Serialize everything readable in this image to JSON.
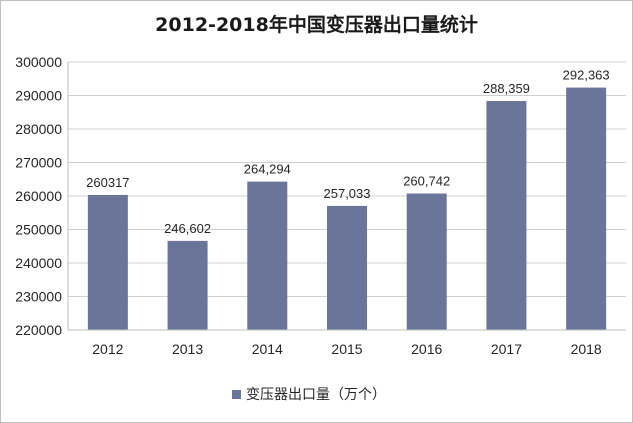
{
  "chart_data": {
    "type": "bar",
    "title": "2012-2018年中国变压器出口量统计",
    "categories": [
      "2012",
      "2013",
      "2014",
      "2015",
      "2016",
      "2017",
      "2018"
    ],
    "series": [
      {
        "name": "变压器出口量（万个）",
        "values": [
          260317,
          246602,
          264294,
          257033,
          260742,
          288359,
          292363
        ],
        "data_labels": [
          "260317",
          "246,602",
          "264,294",
          "257,033",
          "260,742",
          "288,359",
          "292,363"
        ]
      }
    ],
    "ylim": [
      220000,
      300000
    ],
    "yticks": [
      "220000",
      "230000",
      "240000",
      "250000",
      "260000",
      "270000",
      "280000",
      "290000",
      "300000"
    ],
    "grid": true,
    "legend_position": "bottom",
    "bar_color": "#6b7499"
  }
}
